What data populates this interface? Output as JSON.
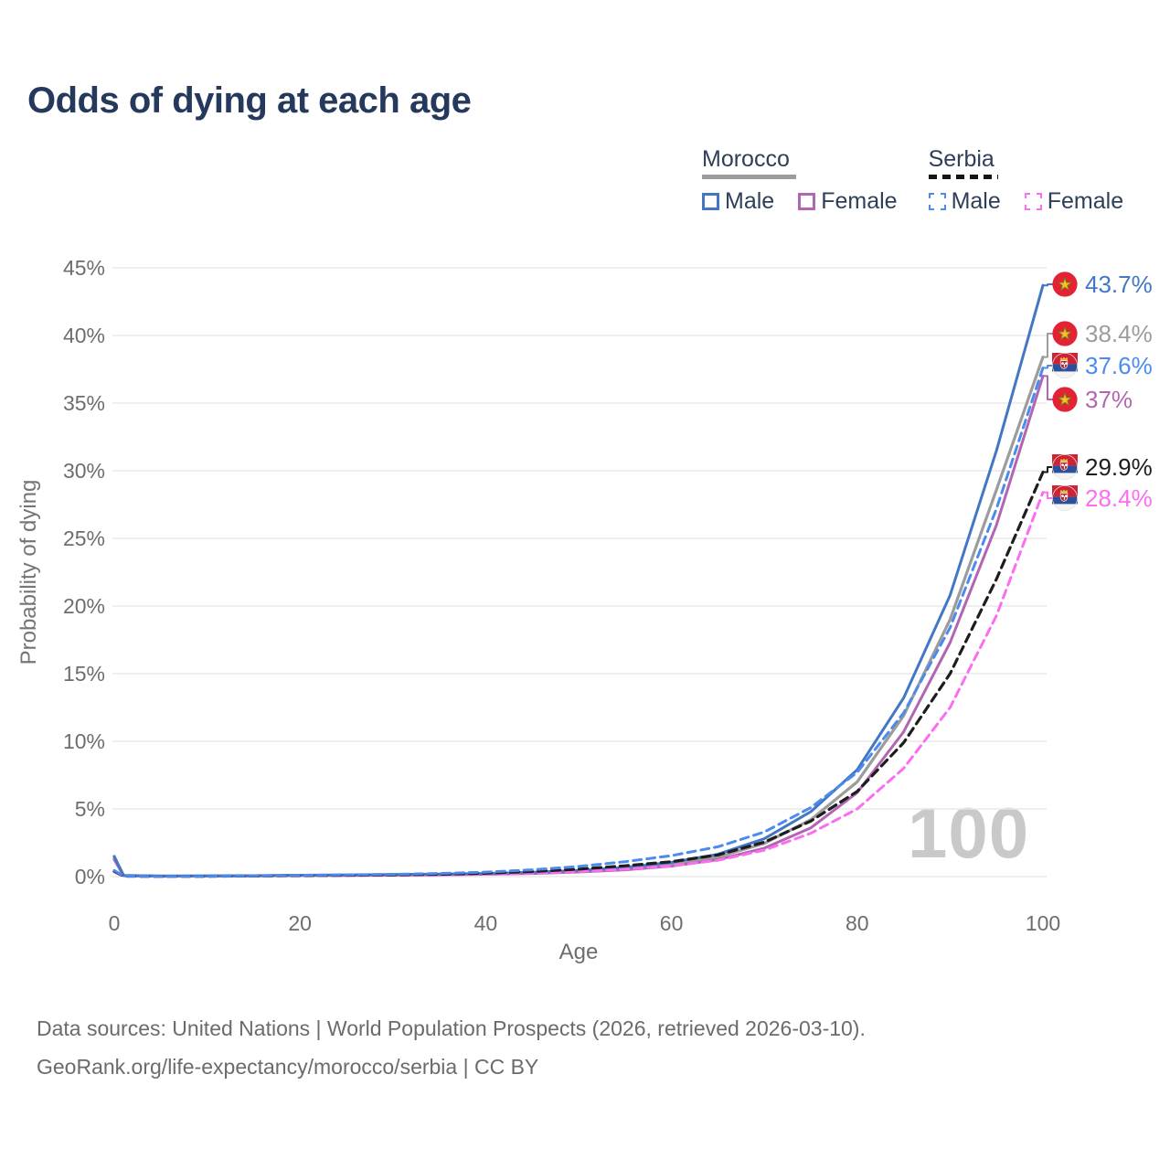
{
  "title": "Odds of dying at each age",
  "watermark": "100",
  "colors": {
    "title": "#24395b",
    "axis_text": "#6d6d6d",
    "grid": "#e9e9e9",
    "watermark": "#c9c9c9",
    "morocco_male": "#4377c4",
    "morocco_both": "#9c9c9c",
    "morocco_female": "#b266b2",
    "serbia_male": "#4b8bee",
    "serbia_both": "#1d1d1d",
    "serbia_female": "#fb6ef0"
  },
  "legend": {
    "groups": [
      {
        "name": "Morocco",
        "line_style": "solid",
        "line_color": "#9c9c9c",
        "items": [
          {
            "label": "Male",
            "color": "#4377c4"
          },
          {
            "label": "Female",
            "color": "#b266b2"
          }
        ]
      },
      {
        "name": "Serbia",
        "line_style": "dashed",
        "line_color": "#141414",
        "items": [
          {
            "label": "Male",
            "color": "#4b8bee"
          },
          {
            "label": "Female",
            "color": "#fb6ef0"
          }
        ]
      }
    ]
  },
  "axes": {
    "x": {
      "title": "Age",
      "ticks": [
        0,
        20,
        40,
        60,
        80,
        100
      ],
      "range": [
        0,
        100
      ]
    },
    "y": {
      "title": "Probability of dying",
      "tick_labels": [
        "0%",
        "5%",
        "10%",
        "15%",
        "20%",
        "25%",
        "30%",
        "35%",
        "40%",
        "45%"
      ],
      "tick_values": [
        0,
        5,
        10,
        15,
        20,
        25,
        30,
        35,
        40,
        45
      ],
      "range": [
        0,
        45
      ]
    }
  },
  "chart_data": {
    "type": "line",
    "title": "Odds of dying at each age",
    "xlabel": "Age",
    "ylabel": "Probability of dying",
    "xlim": [
      0,
      100
    ],
    "ylim": [
      0,
      45
    ],
    "grid": "horizontal",
    "x": [
      0,
      1,
      5,
      10,
      15,
      20,
      25,
      30,
      35,
      40,
      45,
      50,
      55,
      60,
      65,
      70,
      75,
      80,
      85,
      90,
      95,
      100
    ],
    "series": [
      {
        "name": "Morocco Male",
        "color": "#4377c4",
        "dash": "solid",
        "flag": "morocco",
        "end_label": "43.7%",
        "end_value": 43.7,
        "values": [
          1.5,
          0.09,
          0.04,
          0.05,
          0.07,
          0.1,
          0.12,
          0.15,
          0.18,
          0.23,
          0.32,
          0.46,
          0.68,
          1.05,
          1.65,
          2.8,
          4.8,
          7.9,
          13.2,
          20.8,
          31.5,
          43.7
        ]
      },
      {
        "name": "Morocco Both sexes",
        "color": "#9c9c9c",
        "dash": "solid",
        "flag": "morocco",
        "end_label": "38.4%",
        "end_value": 38.4,
        "values": [
          1.38,
          0.08,
          0.035,
          0.045,
          0.06,
          0.09,
          0.11,
          0.13,
          0.16,
          0.2,
          0.28,
          0.4,
          0.58,
          0.9,
          1.45,
          2.45,
          4.2,
          7.0,
          11.9,
          19.0,
          28.6,
          38.4
        ]
      },
      {
        "name": "Serbia Male",
        "color": "#4b8bee",
        "dash": "dashed",
        "flag": "serbia",
        "end_label": "37.6%",
        "end_value": 37.6,
        "values": [
          0.45,
          0.04,
          0.02,
          0.03,
          0.06,
          0.1,
          0.13,
          0.17,
          0.23,
          0.33,
          0.5,
          0.75,
          1.1,
          1.55,
          2.2,
          3.3,
          5.1,
          7.7,
          12.1,
          18.4,
          27.2,
          37.6
        ]
      },
      {
        "name": "Morocco Female",
        "color": "#b266b2",
        "dash": "solid",
        "flag": "morocco",
        "end_label": "37%",
        "end_value": 37,
        "values": [
          1.25,
          0.07,
          0.03,
          0.04,
          0.05,
          0.08,
          0.09,
          0.11,
          0.13,
          0.17,
          0.23,
          0.34,
          0.5,
          0.78,
          1.25,
          2.1,
          3.6,
          6.2,
          10.7,
          17.3,
          26.0,
          37.0
        ]
      },
      {
        "name": "Serbia Both sexes",
        "color": "#1d1d1d",
        "dash": "dashed",
        "flag": "serbia",
        "end_label": "29.9%",
        "end_value": 29.9,
        "values": [
          0.4,
          0.035,
          0.018,
          0.025,
          0.05,
          0.08,
          0.1,
          0.13,
          0.17,
          0.25,
          0.37,
          0.55,
          0.8,
          1.1,
          1.6,
          2.55,
          4.1,
          6.3,
          9.9,
          15.0,
          22.0,
          29.9
        ]
      },
      {
        "name": "Serbia Female",
        "color": "#fb6ef0",
        "dash": "dashed",
        "flag": "serbia",
        "end_label": "28.4%",
        "end_value": 28.4,
        "values": [
          0.35,
          0.03,
          0.015,
          0.02,
          0.04,
          0.06,
          0.08,
          0.1,
          0.12,
          0.18,
          0.26,
          0.38,
          0.55,
          0.8,
          1.2,
          1.95,
          3.2,
          5.0,
          8.0,
          12.5,
          19.3,
          28.4
        ]
      }
    ]
  },
  "footer": {
    "line1": "Data sources: United Nations | World Population Prospects (2026, retrieved 2026-03-10).",
    "line2": "GeoRank.org/life-expectancy/morocco/serbia | CC BY"
  }
}
